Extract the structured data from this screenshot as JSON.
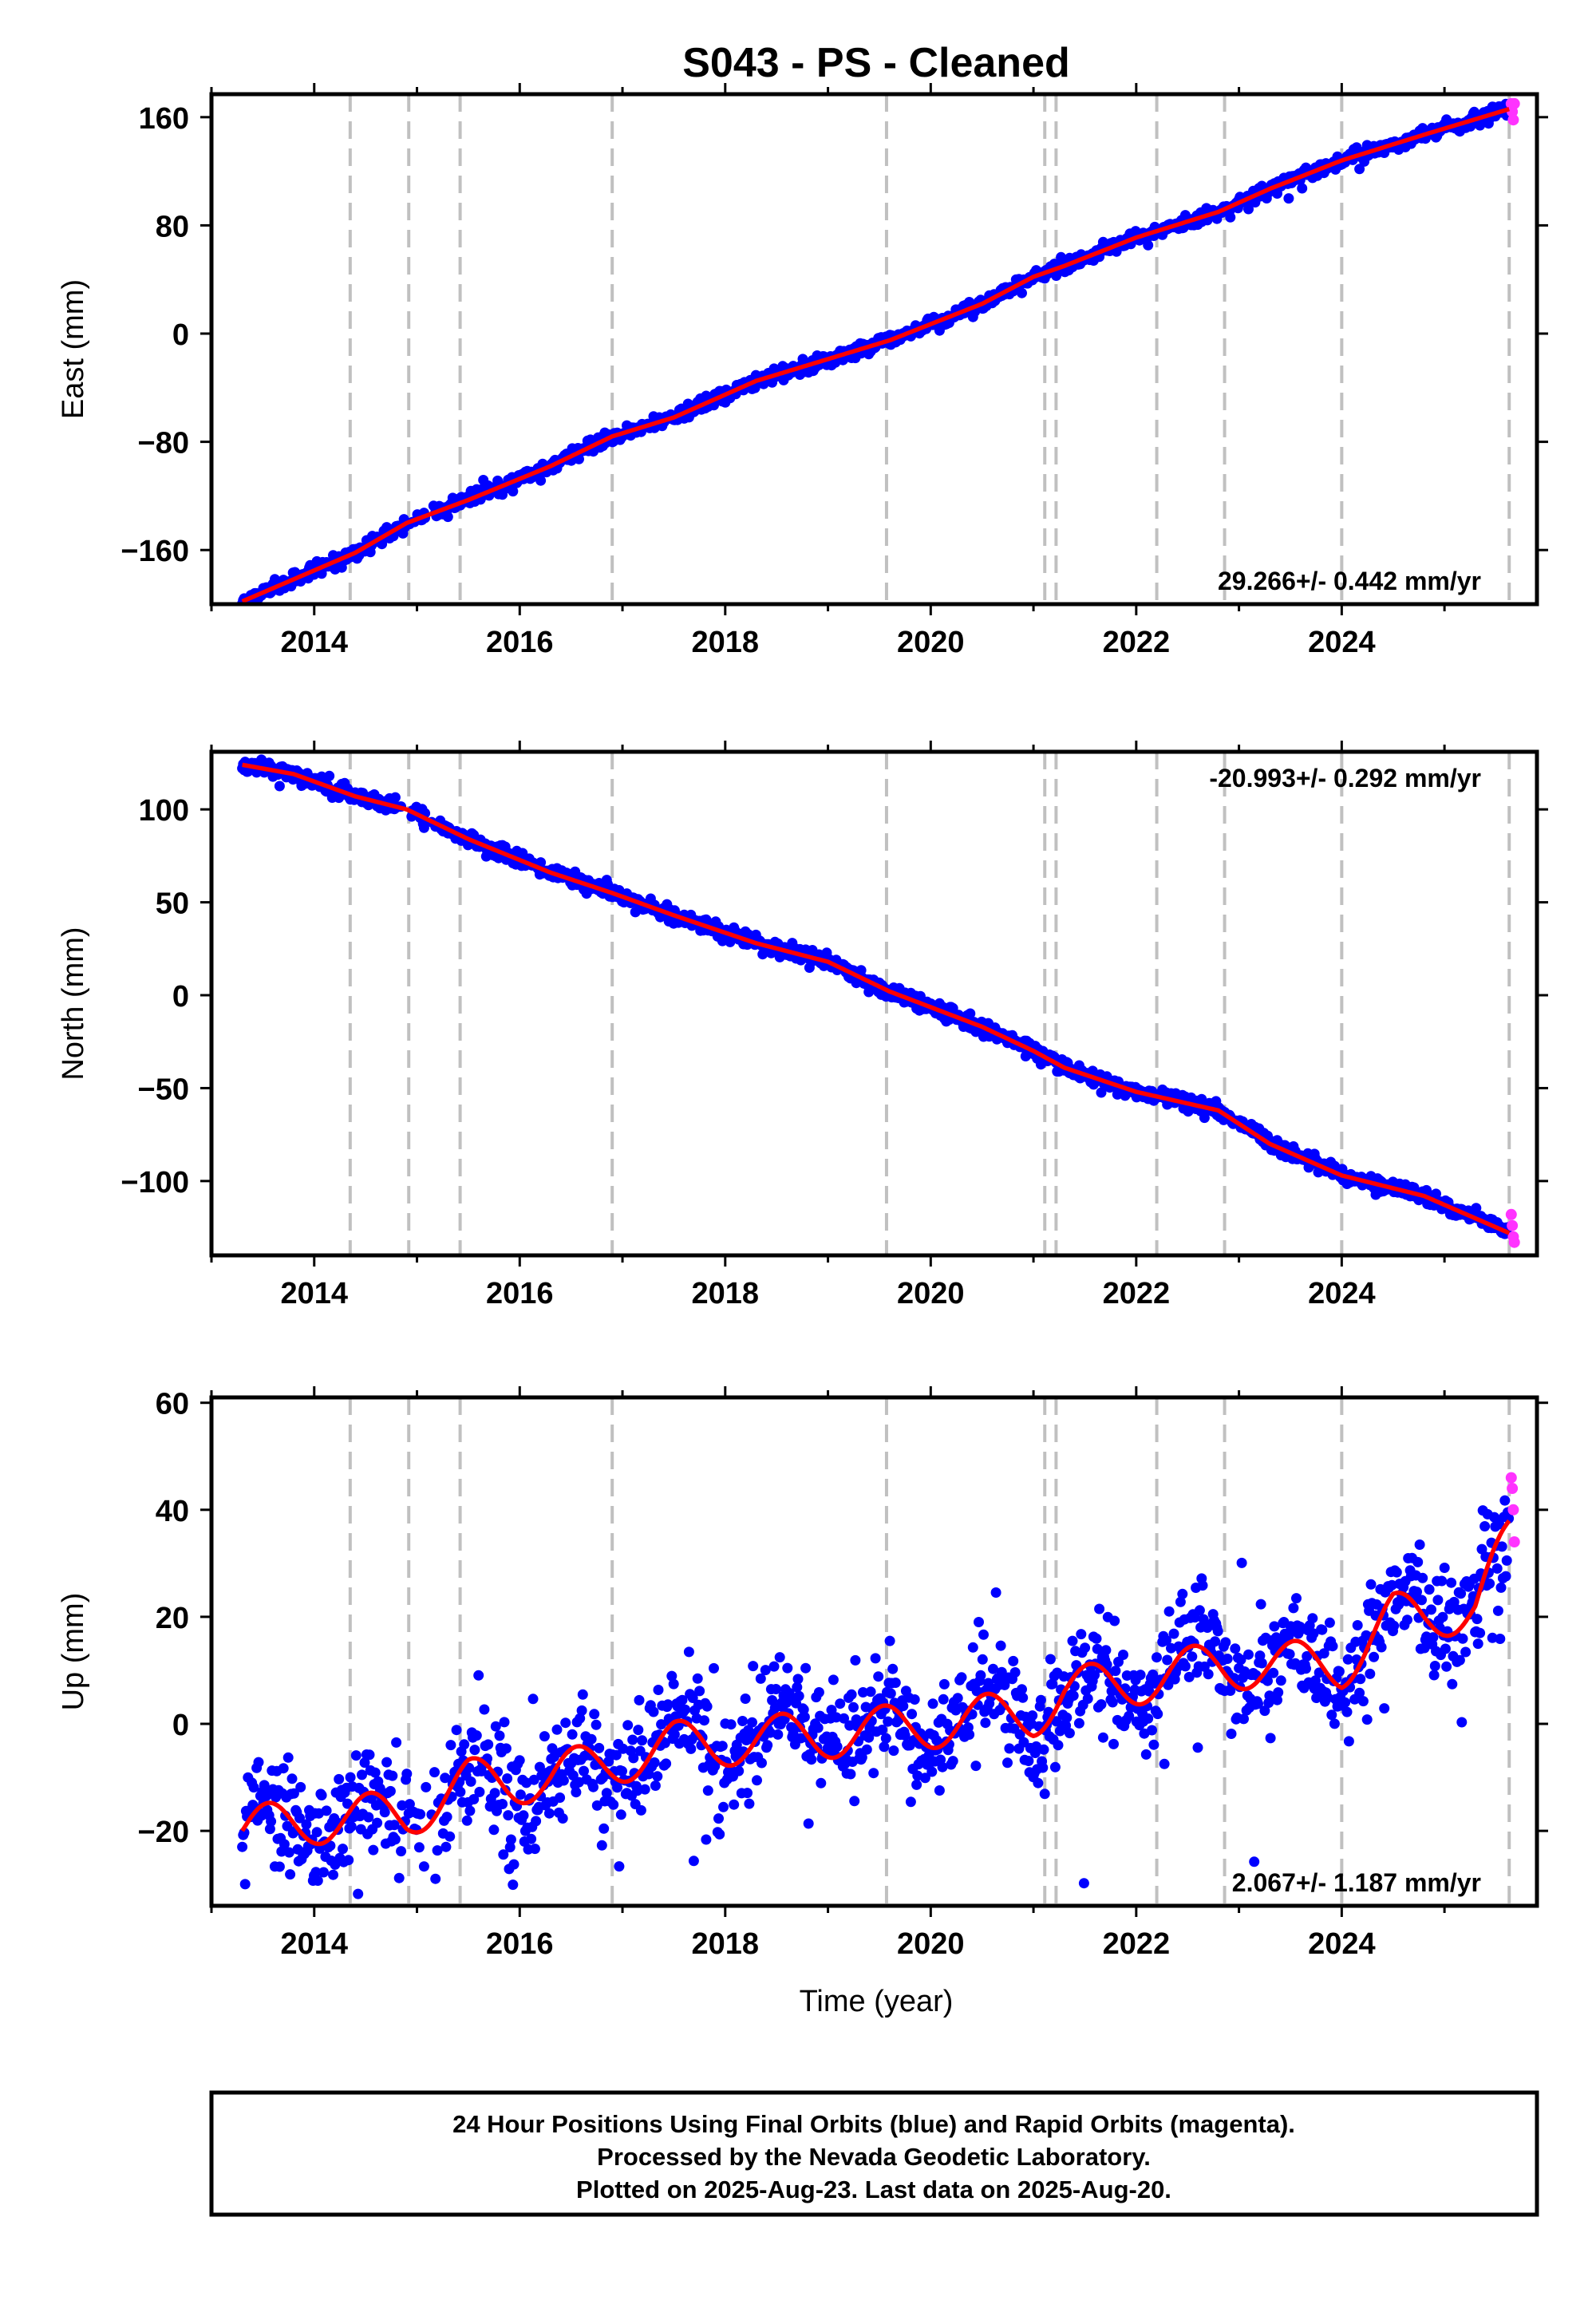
{
  "title": "S043  - PS - Cleaned",
  "footer": {
    "lines": [
      "24 Hour Positions Using Final Orbits (blue) and Rapid Orbits (magenta).",
      "Processed by the Nevada Geodetic Laboratory.",
      "Plotted on 2025-Aug-23. Last data on 2025-Aug-20."
    ]
  },
  "colors": {
    "final": "#0000ff",
    "rapid": "#ff33ff",
    "model": "#ff0000",
    "events": "#c0c0c0",
    "axis": "#000000"
  },
  "chart_data": [
    {
      "type": "scatter",
      "component": "east",
      "ylabel": "East (mm)",
      "xlabel": "",
      "xlim": [
        2013.0,
        2025.9
      ],
      "ylim": [
        -200,
        177
      ],
      "xticks": [
        2014,
        2016,
        2018,
        2020,
        2022,
        2024
      ],
      "yticks": [
        -160,
        -80,
        0,
        80,
        160
      ],
      "ytick_labels": [
        "−160",
        "−80",
        "0",
        "80",
        "160"
      ],
      "rate_text": "29.266+/- 0.442 mm/yr",
      "rate_position": "bottom-right",
      "rate": 29.266,
      "start": [
        2013.3,
        -198
      ],
      "end": [
        2025.63,
        168
      ],
      "scatter_sd": 2.5,
      "seasonal_amplitude": 0,
      "model_anchors": [
        [
          2013.3,
          -198
        ],
        [
          2014.4,
          -162
        ],
        [
          2014.9,
          -140
        ],
        [
          2015.5,
          -123
        ],
        [
          2016.3,
          -98
        ],
        [
          2016.9,
          -76
        ],
        [
          2017.5,
          -62
        ],
        [
          2018.3,
          -35
        ],
        [
          2019.6,
          -5
        ],
        [
          2020.5,
          22
        ],
        [
          2021.0,
          42
        ],
        [
          2021.3,
          50
        ],
        [
          2022.0,
          71
        ],
        [
          2022.8,
          90
        ],
        [
          2023.3,
          107
        ],
        [
          2024.0,
          128
        ],
        [
          2024.8,
          147
        ],
        [
          2025.63,
          166
        ]
      ],
      "event_years": [
        2014.35,
        2014.92,
        2015.42,
        2016.9,
        2019.57,
        2021.11,
        2021.22,
        2022.2,
        2022.86,
        2024.0,
        2025.63
      ],
      "rapid_values": [
        170,
        164,
        158,
        170
      ]
    },
    {
      "type": "scatter",
      "component": "north",
      "ylabel": "North (mm)",
      "xlabel": "",
      "xlim": [
        2013.0,
        2025.9
      ],
      "ylim": [
        -140,
        131
      ],
      "xticks": [
        2014,
        2016,
        2018,
        2020,
        2022,
        2024
      ],
      "yticks": [
        -100,
        -50,
        0,
        50,
        100
      ],
      "ytick_labels": [
        "−100",
        "−50",
        "0",
        "50",
        "100"
      ],
      "rate_text": "-20.993+/- 0.292 mm/yr",
      "rate_position": "top-right",
      "rate": -20.993,
      "start": [
        2013.3,
        124
      ],
      "end": [
        2025.63,
        -128
      ],
      "scatter_sd": 2.0,
      "seasonal_amplitude": 0,
      "model_anchors": [
        [
          2013.3,
          124
        ],
        [
          2013.8,
          119
        ],
        [
          2014.4,
          107
        ],
        [
          2014.9,
          100
        ],
        [
          2015.5,
          84
        ],
        [
          2016.3,
          66
        ],
        [
          2016.9,
          55
        ],
        [
          2017.5,
          43
        ],
        [
          2018.3,
          28
        ],
        [
          2019.0,
          18
        ],
        [
          2019.6,
          2
        ],
        [
          2020.5,
          -17
        ],
        [
          2021.0,
          -30
        ],
        [
          2021.3,
          -39
        ],
        [
          2022.0,
          -52
        ],
        [
          2022.8,
          -62
        ],
        [
          2023.3,
          -80
        ],
        [
          2024.0,
          -97
        ],
        [
          2024.8,
          -108
        ],
        [
          2025.63,
          -128
        ]
      ],
      "event_years": [
        2014.35,
        2014.92,
        2015.42,
        2016.9,
        2019.57,
        2021.11,
        2021.22,
        2022.2,
        2022.86,
        2024.0,
        2025.63
      ],
      "rapid_values": [
        -118,
        -124,
        -130,
        -133
      ]
    },
    {
      "type": "scatter",
      "component": "up",
      "ylabel": "Up (mm)",
      "xlabel": "Time (year)",
      "xlim": [
        2013.0,
        2025.9
      ],
      "ylim": [
        -34,
        61
      ],
      "xticks": [
        2014,
        2016,
        2018,
        2020,
        2022,
        2024
      ],
      "yticks": [
        -20,
        0,
        20,
        40,
        60
      ],
      "ytick_labels": [
        "−20",
        "0",
        "20",
        "40",
        "60"
      ],
      "rate_text": "2.067+/- 1.187 mm/yr",
      "rate_position": "bottom-right",
      "rate": 2.067,
      "start": [
        2013.3,
        -22
      ],
      "end": [
        2025.63,
        32
      ],
      "scatter_sd": 5.5,
      "seasonal_amplitude": 4.5,
      "model_anchors": [
        [
          2013.3,
          -20
        ],
        [
          2014.0,
          -18
        ],
        [
          2014.9,
          -17
        ],
        [
          2015.5,
          -11
        ],
        [
          2016.3,
          -10
        ],
        [
          2016.9,
          -7
        ],
        [
          2017.5,
          -4
        ],
        [
          2018.3,
          -3
        ],
        [
          2019.6,
          -1
        ],
        [
          2020.5,
          1
        ],
        [
          2021.0,
          2
        ],
        [
          2021.3,
          6
        ],
        [
          2022.0,
          8
        ],
        [
          2022.8,
          11
        ],
        [
          2023.3,
          11
        ],
        [
          2024.0,
          11
        ],
        [
          2024.5,
          20
        ],
        [
          2024.8,
          20
        ],
        [
          2025.3,
          22
        ],
        [
          2025.63,
          34
        ]
      ],
      "event_years": [
        2014.35,
        2014.92,
        2015.42,
        2016.9,
        2019.57,
        2021.11,
        2021.22,
        2022.2,
        2022.86,
        2024.0,
        2025.63
      ],
      "rapid_values": [
        46,
        44,
        40,
        34
      ]
    }
  ]
}
